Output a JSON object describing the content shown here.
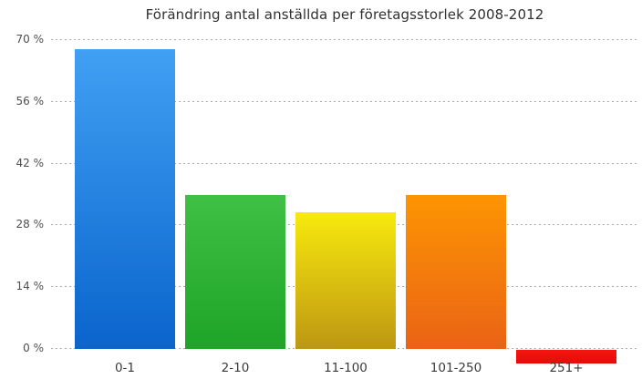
{
  "chart_data": {
    "type": "bar",
    "title": "Förändring antal anställda per företagsstorlek 2008-2012",
    "xlabel": "",
    "ylabel": "",
    "unit": "%",
    "categories": [
      "0-1",
      "2-10",
      "11-100",
      "101-250",
      "251+"
    ],
    "values": [
      68,
      35,
      31,
      35,
      -3
    ],
    "y_ticks": [
      70,
      56,
      42,
      28,
      14,
      0
    ],
    "y_tick_suffix": " %",
    "ylim": [
      -5,
      70
    ],
    "grid": "dotted-horizontal",
    "legend_position": "none",
    "background_color": "#ffffff",
    "gridline_color": "#ababab",
    "title_color": "#303030",
    "bar_gradients": [
      {
        "top": "#41A0F3",
        "bottom": "#0A64CC"
      },
      {
        "top": "#3FC045",
        "bottom": "#1EA428"
      },
      {
        "top": "#F8EA0D",
        "bottom": "#BD9713"
      },
      {
        "top": "#FD9502",
        "bottom": "#EA6315"
      },
      {
        "top": "#F51510",
        "bottom": "#E30D08"
      }
    ]
  }
}
